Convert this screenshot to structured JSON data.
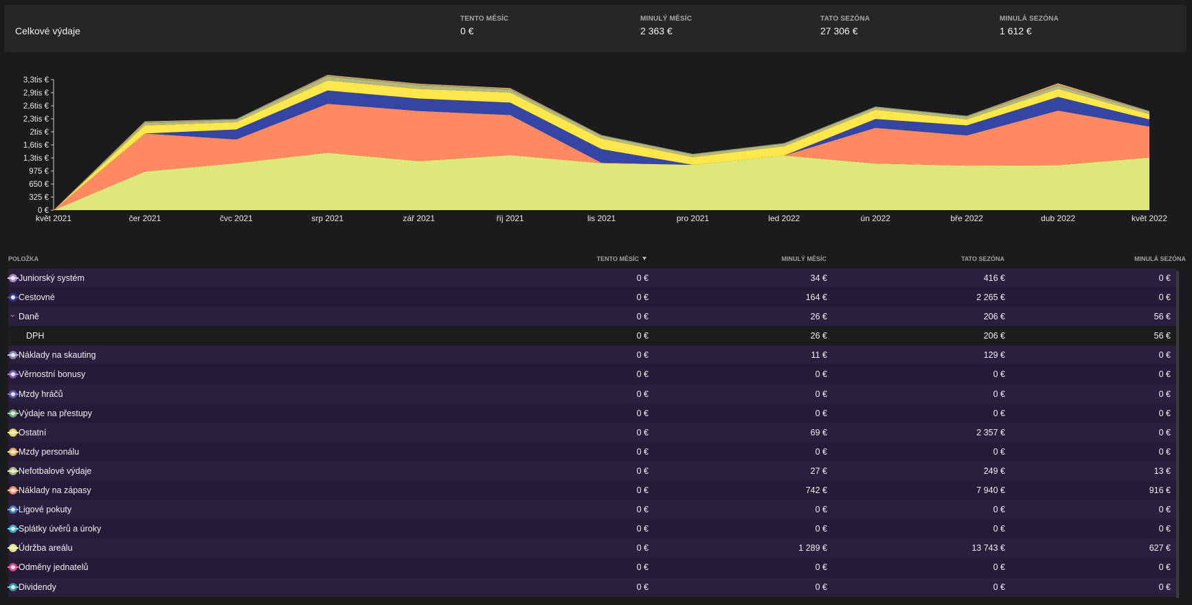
{
  "summary": {
    "title": "Celkové výdaje",
    "stats": [
      {
        "label": "TENTO MĚSÍC",
        "value": "0 €"
      },
      {
        "label": "MINULÝ MĚSÍC",
        "value": "2 363 €"
      },
      {
        "label": "TATO SEZÓNA",
        "value": "27 306 €"
      },
      {
        "label": "MINULÁ SEZÓNA",
        "value": "1 612 €"
      }
    ]
  },
  "chart_data": {
    "type": "area",
    "stacked": true,
    "categories": [
      "květ 2021",
      "čer 2021",
      "čvc 2021",
      "srp 2021",
      "zář 2021",
      "říj 2021",
      "lis 2021",
      "pro 2021",
      "led 2022",
      "ún 2022",
      "bře 2022",
      "dub 2022",
      "květ 2022"
    ],
    "y_ticks": [
      "0 €",
      "325 €",
      "650 €",
      "975 €",
      "1,3tis €",
      "1,6tis €",
      "2tis €",
      "2,3tis €",
      "2,6tis €",
      "2,9tis €",
      "3,3tis €"
    ],
    "ylim": [
      0,
      3250
    ],
    "series": [
      {
        "name": "Údržba areálu",
        "color": "#dfe67a",
        "values": [
          0,
          960,
          1170,
          1430,
          1220,
          1370,
          1170,
          1130,
          1360,
          1160,
          1110,
          1120,
          1310
        ]
      },
      {
        "name": "Náklady na zápasy",
        "color": "#ff8a61",
        "values": [
          0,
          950,
          590,
          1220,
          1250,
          1000,
          10,
          0,
          0,
          890,
          750,
          1360,
          770
        ]
      },
      {
        "name": "Cestovné",
        "color": "#3445a6",
        "values": [
          0,
          0,
          250,
          330,
          310,
          310,
          340,
          0,
          0,
          220,
          250,
          340,
          180
        ]
      },
      {
        "name": "Ostatní",
        "color": "#fde74b",
        "values": [
          0,
          200,
          180,
          250,
          240,
          250,
          260,
          190,
          230,
          230,
          150,
          200,
          130
        ]
      },
      {
        "name": "Juniorský systém",
        "color": "#b7b87a",
        "values": [
          0,
          60,
          60,
          100,
          90,
          70,
          70,
          60,
          60,
          60,
          70,
          80,
          60
        ]
      },
      {
        "name": "Nefotbalové výdaje",
        "color": "#98a87a",
        "values": [
          0,
          20,
          20,
          20,
          20,
          20,
          20,
          20,
          20,
          20,
          20,
          20,
          20
        ]
      },
      {
        "name": "Mzdy personálu",
        "color": "#e9a854",
        "values": [
          0,
          20,
          0,
          20,
          20,
          20,
          0,
          0,
          0,
          0,
          0,
          40,
          0
        ]
      }
    ]
  },
  "table": {
    "columns": [
      "POLOŽKA",
      "TENTO MĚSÍC",
      "MINULÝ MĚSÍC",
      "TATO SEZÓNA",
      "MINULÁ SEZÓNA"
    ],
    "rows": [
      {
        "name": "Juniorský systém",
        "color": "#a58cc0",
        "type": "parent",
        "v": [
          "0 €",
          "34 €",
          "416 €",
          "0 €"
        ]
      },
      {
        "name": "Cestovné",
        "color": "#3a3c8c",
        "type": "parent",
        "v": [
          "0 €",
          "164 €",
          "2 265 €",
          "0 €"
        ]
      },
      {
        "name": "Daně",
        "color": "#e29a5a",
        "type": "expanded",
        "v": [
          "0 €",
          "26 €",
          "206 €",
          "56 €"
        ]
      },
      {
        "name": "DPH",
        "color": "",
        "type": "child",
        "v": [
          "0 €",
          "26 €",
          "206 €",
          "56 €"
        ]
      },
      {
        "name": "Náklady na skauting",
        "color": "#8a85a8",
        "type": "parent",
        "v": [
          "0 €",
          "11 €",
          "129 €",
          "0 €"
        ]
      },
      {
        "name": "Věrnostní bonusy",
        "color": "#7b5ab0",
        "type": "parent",
        "v": [
          "0 €",
          "0 €",
          "0 €",
          "0 €"
        ]
      },
      {
        "name": "Mzdy hráčů",
        "color": "#5b5aa8",
        "type": "parent",
        "v": [
          "0 €",
          "0 €",
          "0 €",
          "0 €"
        ]
      },
      {
        "name": "Výdaje na přestupy",
        "color": "#6aa07a",
        "type": "parent",
        "v": [
          "0 €",
          "0 €",
          "0 €",
          "0 €"
        ]
      },
      {
        "name": "Ostatní",
        "color": "#e6d84a",
        "type": "parent",
        "v": [
          "0 €",
          "69 €",
          "2 357 €",
          "0 €"
        ]
      },
      {
        "name": "Mzdy personálu",
        "color": "#e9a854",
        "type": "parent",
        "v": [
          "0 €",
          "0 €",
          "0 €",
          "0 €"
        ]
      },
      {
        "name": "Nefotbalové výdaje",
        "color": "#a8b880",
        "type": "parent",
        "v": [
          "0 €",
          "27 €",
          "249 €",
          "13 €"
        ]
      },
      {
        "name": "Náklady na zápasy",
        "color": "#ff8a61",
        "type": "parent",
        "v": [
          "0 €",
          "742 €",
          "7 940 €",
          "916 €"
        ]
      },
      {
        "name": "Ligové pokuty",
        "color": "#4a7ab8",
        "type": "parent",
        "v": [
          "0 €",
          "0 €",
          "0 €",
          "0 €"
        ]
      },
      {
        "name": "Splátky úvěrů a úroky",
        "color": "#3aa8c0",
        "type": "parent",
        "v": [
          "0 €",
          "0 €",
          "0 €",
          "0 €"
        ]
      },
      {
        "name": "Údržba areálu",
        "color": "#dfe67a",
        "type": "parent",
        "v": [
          "0 €",
          "1 289 €",
          "13 743 €",
          "627 €"
        ]
      },
      {
        "name": "Odměny jednatelů",
        "color": "#d84a8a",
        "type": "parent",
        "v": [
          "0 €",
          "0 €",
          "0 €",
          "0 €"
        ]
      },
      {
        "name": "Dividendy",
        "color": "#3a9a9a",
        "type": "parent",
        "v": [
          "0 €",
          "0 €",
          "0 €",
          "0 €"
        ]
      }
    ]
  }
}
